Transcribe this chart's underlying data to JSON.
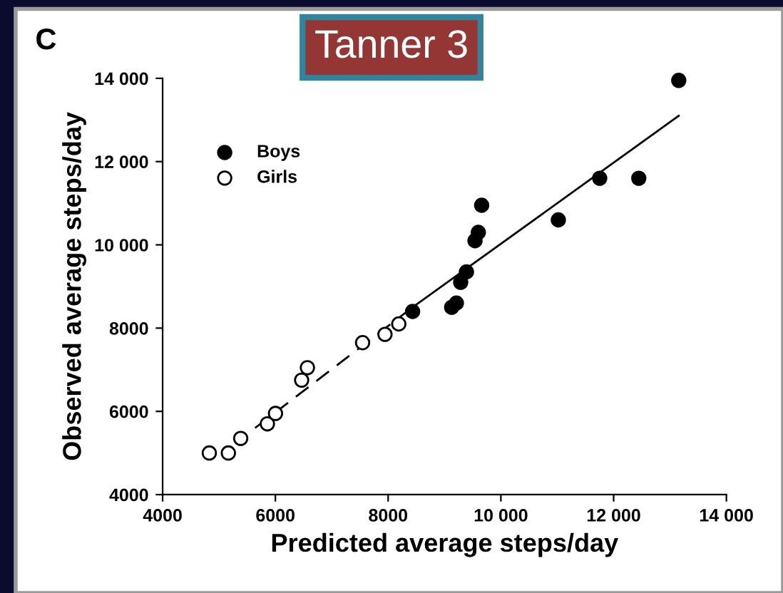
{
  "chart_data": {
    "type": "scatter",
    "title": "Tanner 3",
    "xlabel": "Predicted average steps/day",
    "ylabel": "Observed average steps/day",
    "annotations": [
      "C"
    ],
    "xlim": [
      4000,
      14000
    ],
    "ylim": [
      4000,
      14000
    ],
    "xticks": [
      4000,
      6000,
      8000,
      {
        "value": 10000,
        "label": "10 000"
      },
      {
        "value": 12000,
        "label": "12 000"
      },
      {
        "value": 14000,
        "label": "14 000"
      }
    ],
    "yticks": [
      4000,
      6000,
      8000,
      {
        "value": 10000,
        "label": "10 000"
      },
      {
        "value": 12000,
        "label": "12 000"
      },
      {
        "value": 14000,
        "label": "14 000"
      }
    ],
    "grid": false,
    "legend": "top left",
    "marker": "circle",
    "series": [
      {
        "name": "Boys",
        "color": "#000000",
        "x": [
          8434,
          9127,
          9211,
          9287,
          9389,
          9541,
          9600,
          9659,
          11019,
          11753,
          12446,
          13155
        ],
        "values": [
          8400,
          8500,
          8600,
          9100,
          9350,
          10100,
          10300,
          10950,
          10600,
          11600,
          11600,
          13950
        ]
      },
      {
        "name": "Girls",
        "color": "#ffffff",
        "x": [
          4828,
          5166,
          5385,
          5858,
          6002,
          6466,
          6568,
          7547,
          7944,
          8189
        ],
        "values": [
          5000,
          5000,
          5350,
          5700,
          5950,
          6750,
          7050,
          7650,
          7850,
          8100
        ]
      },
      {
        "type": "line",
        "color": "#000000",
        "line_style": "dashed",
        "marker": "none",
        "x": [
          5639,
          8434
        ],
        "values": [
          5600,
          8500
        ]
      },
      {
        "type": "line",
        "color": "#000000",
        "line_style": "solid",
        "marker": "none",
        "x": [
          8434,
          13155
        ],
        "values": [
          8500,
          13100
        ]
      }
    ]
  }
}
